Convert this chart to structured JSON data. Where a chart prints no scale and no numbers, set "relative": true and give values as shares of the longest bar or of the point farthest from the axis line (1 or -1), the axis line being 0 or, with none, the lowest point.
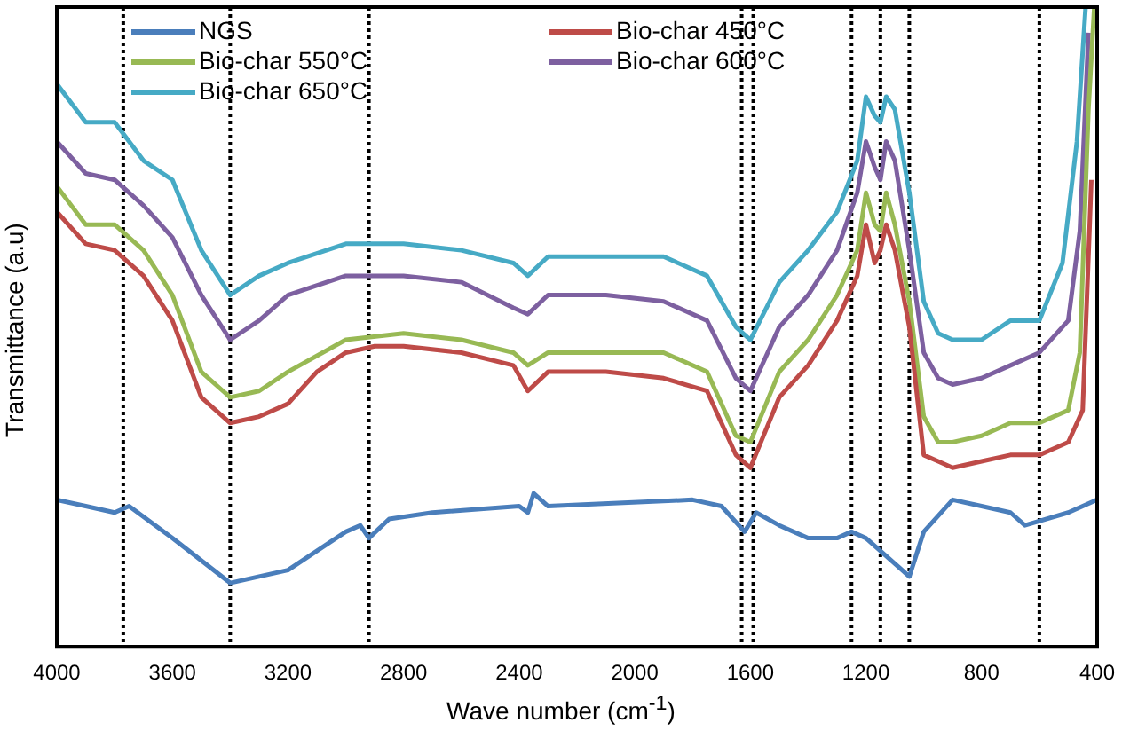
{
  "chart_data": {
    "type": "line",
    "relative": true,
    "xlabel": "Wave number (cm$^{-1}$)",
    "ylabel": "Transmittance (a.u)",
    "xlim": [
      4000,
      400
    ],
    "xticks": [
      4000,
      3600,
      3200,
      2800,
      2400,
      2000,
      1600,
      1200,
      800,
      400
    ],
    "grid": false,
    "legend": "top left",
    "marker": "none",
    "line_style": "solid",
    "series": [
      {
        "name": "NGS",
        "color": "#4a7ebb",
        "x": [
          4000,
          3900,
          3800,
          3750,
          3600,
          3400,
          3200,
          3000,
          2950,
          2920,
          2850,
          2700,
          2400,
          2370,
          2350,
          2300,
          1800,
          1700,
          1620,
          1580,
          1500,
          1400,
          1300,
          1250,
          1200,
          1100,
          1050,
          1000,
          900,
          800,
          700,
          650,
          500,
          400
        ],
        "values": [
          0.23,
          0.22,
          0.21,
          0.22,
          0.17,
          0.1,
          0.12,
          0.18,
          0.19,
          0.17,
          0.2,
          0.21,
          0.22,
          0.21,
          0.24,
          0.22,
          0.23,
          0.22,
          0.18,
          0.21,
          0.19,
          0.17,
          0.17,
          0.18,
          0.17,
          0.13,
          0.11,
          0.18,
          0.23,
          0.22,
          0.21,
          0.19,
          0.21,
          0.23
        ]
      },
      {
        "name": "Bio-char 450°C",
        "color": "#be4b48",
        "x": [
          4000,
          3900,
          3800,
          3700,
          3600,
          3500,
          3400,
          3300,
          3200,
          3100,
          3000,
          2900,
          2800,
          2600,
          2420,
          2370,
          2300,
          2100,
          1900,
          1750,
          1650,
          1600,
          1500,
          1400,
          1300,
          1230,
          1200,
          1170,
          1150,
          1130,
          1100,
          1050,
          1000,
          950,
          900,
          800,
          700,
          600,
          500,
          450,
          420
        ],
        "values": [
          0.68,
          0.63,
          0.62,
          0.58,
          0.51,
          0.39,
          0.35,
          0.36,
          0.38,
          0.43,
          0.46,
          0.47,
          0.47,
          0.46,
          0.44,
          0.4,
          0.43,
          0.43,
          0.42,
          0.4,
          0.3,
          0.28,
          0.39,
          0.44,
          0.51,
          0.58,
          0.66,
          0.6,
          0.62,
          0.66,
          0.62,
          0.5,
          0.3,
          0.29,
          0.28,
          0.29,
          0.3,
          0.3,
          0.32,
          0.37,
          0.73
        ]
      },
      {
        "name": "Bio-char 550°C",
        "color": "#98b954",
        "x": [
          4000,
          3900,
          3800,
          3700,
          3600,
          3500,
          3400,
          3300,
          3200,
          3000,
          2800,
          2600,
          2420,
          2370,
          2300,
          2100,
          1900,
          1750,
          1650,
          1600,
          1500,
          1400,
          1300,
          1230,
          1200,
          1170,
          1150,
          1130,
          1100,
          1050,
          1000,
          950,
          900,
          800,
          700,
          600,
          500,
          460,
          430,
          410
        ],
        "values": [
          0.72,
          0.66,
          0.66,
          0.62,
          0.55,
          0.43,
          0.39,
          0.4,
          0.43,
          0.48,
          0.49,
          0.48,
          0.46,
          0.44,
          0.46,
          0.46,
          0.46,
          0.43,
          0.33,
          0.32,
          0.43,
          0.48,
          0.55,
          0.62,
          0.71,
          0.66,
          0.65,
          0.71,
          0.66,
          0.54,
          0.36,
          0.32,
          0.32,
          0.33,
          0.35,
          0.35,
          0.37,
          0.46,
          0.84,
          1
        ]
      },
      {
        "name": "Bio-char 600°C",
        "color": "#7d60a0",
        "x": [
          4000,
          3900,
          3800,
          3700,
          3600,
          3500,
          3400,
          3300,
          3200,
          3000,
          2800,
          2600,
          2420,
          2370,
          2300,
          2100,
          1900,
          1750,
          1650,
          1600,
          1500,
          1400,
          1300,
          1230,
          1200,
          1170,
          1150,
          1130,
          1100,
          1050,
          1000,
          950,
          900,
          800,
          700,
          600,
          500,
          460,
          430
        ],
        "values": [
          0.79,
          0.74,
          0.73,
          0.69,
          0.64,
          0.55,
          0.48,
          0.51,
          0.55,
          0.58,
          0.58,
          0.57,
          0.53,
          0.52,
          0.55,
          0.55,
          0.54,
          0.51,
          0.42,
          0.4,
          0.5,
          0.55,
          0.62,
          0.71,
          0.79,
          0.75,
          0.73,
          0.79,
          0.76,
          0.62,
          0.46,
          0.42,
          0.41,
          0.42,
          0.44,
          0.46,
          0.51,
          0.65,
          0.96
        ]
      },
      {
        "name": "Bio-char 650°C",
        "color": "#46aac5",
        "x": [
          4000,
          3900,
          3800,
          3700,
          3600,
          3500,
          3400,
          3300,
          3200,
          3000,
          2800,
          2600,
          2420,
          2370,
          2300,
          2100,
          1900,
          1750,
          1650,
          1600,
          1500,
          1400,
          1300,
          1230,
          1200,
          1170,
          1150,
          1130,
          1100,
          1050,
          1000,
          950,
          900,
          800,
          700,
          600,
          520,
          470,
          440
        ],
        "values": [
          0.88,
          0.82,
          0.82,
          0.76,
          0.73,
          0.62,
          0.55,
          0.58,
          0.6,
          0.63,
          0.63,
          0.62,
          0.6,
          0.58,
          0.61,
          0.61,
          0.61,
          0.58,
          0.5,
          0.48,
          0.57,
          0.62,
          0.68,
          0.76,
          0.86,
          0.83,
          0.82,
          0.86,
          0.84,
          0.71,
          0.54,
          0.49,
          0.48,
          0.48,
          0.51,
          0.51,
          0.6,
          0.79,
          1
        ]
      }
    ],
    "ref_lines": [
      {
        "axis": "x",
        "value": 3770,
        "color": "#000000",
        "line_style": "dotted"
      },
      {
        "axis": "x",
        "value": 3400,
        "color": "#000000",
        "line_style": "dotted"
      },
      {
        "axis": "x",
        "value": 2920,
        "color": "#000000",
        "line_style": "dotted"
      },
      {
        "axis": "x",
        "value": 1630,
        "color": "#000000",
        "line_style": "dotted"
      },
      {
        "axis": "x",
        "value": 1590,
        "color": "#000000",
        "line_style": "dotted"
      },
      {
        "axis": "x",
        "value": 1250,
        "color": "#000000",
        "line_style": "dotted"
      },
      {
        "axis": "x",
        "value": 1150,
        "color": "#000000",
        "line_style": "dotted"
      },
      {
        "axis": "x",
        "value": 1050,
        "color": "#000000",
        "line_style": "dotted"
      },
      {
        "axis": "x",
        "value": 600,
        "color": "#000000",
        "line_style": "dotted"
      }
    ]
  }
}
